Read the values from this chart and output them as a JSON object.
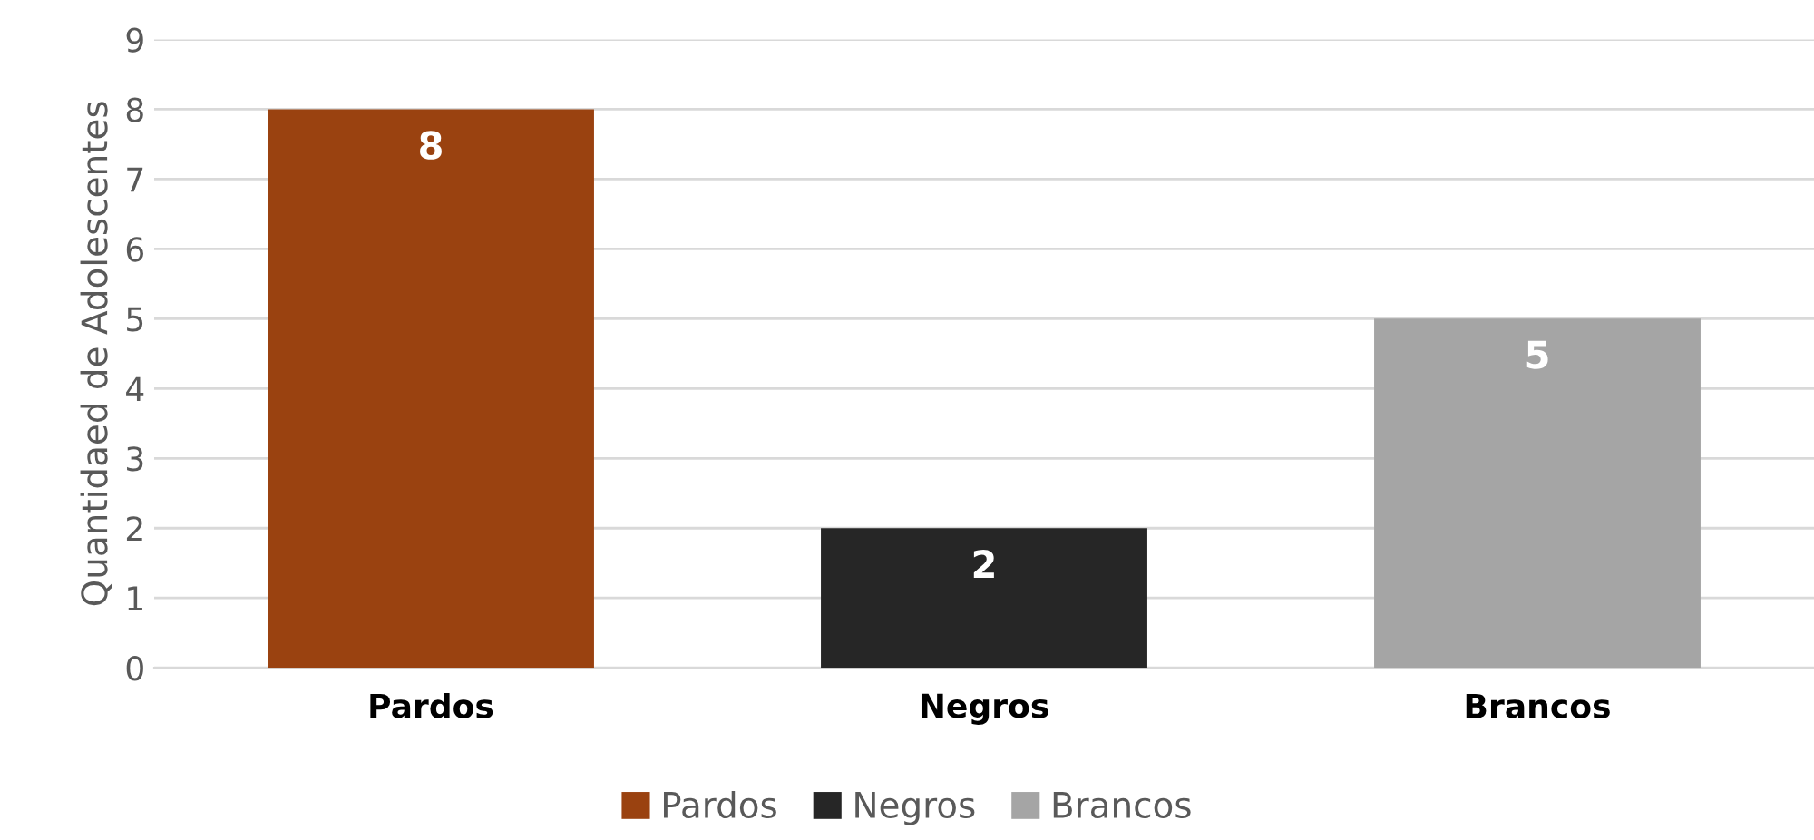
{
  "chart_data": {
    "type": "bar",
    "ylabel": "Quantidaed de Adolescentes",
    "categories": [
      "Pardos",
      "Negros",
      "Brancos"
    ],
    "series": [
      {
        "name": "Pardos",
        "color": "#9a4210",
        "values": [
          8,
          null,
          null
        ]
      },
      {
        "name": "Negros",
        "color": "#262626",
        "values": [
          null,
          2,
          null
        ]
      },
      {
        "name": "Brancos",
        "color": "#a5a5a5",
        "values": [
          null,
          null,
          5
        ]
      }
    ],
    "stacked": true,
    "ylim": [
      0,
      9
    ],
    "yticks": [
      0,
      1,
      2,
      3,
      4,
      5,
      6,
      7,
      8,
      9
    ],
    "grid": "y",
    "legend": "bottom",
    "data_labels": true
  }
}
